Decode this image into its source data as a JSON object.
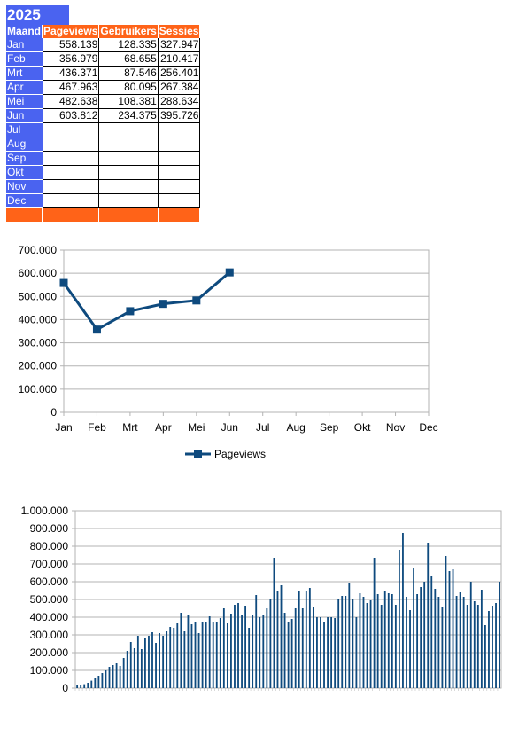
{
  "sheet": {
    "year": "2025",
    "headers": [
      "Maand",
      "Pageviews",
      "Gebruikers",
      "Sessies"
    ],
    "rows": [
      {
        "month": "Jan",
        "pageviews": "558.139",
        "users": "128.335",
        "sessions": "327.947"
      },
      {
        "month": "Feb",
        "pageviews": "356.979",
        "users": "68.655",
        "sessions": "210.417"
      },
      {
        "month": "Mrt",
        "pageviews": "436.371",
        "users": "87.546",
        "sessions": "256.401"
      },
      {
        "month": "Apr",
        "pageviews": "467.963",
        "users": "80.095",
        "sessions": "267.384"
      },
      {
        "month": "Mei",
        "pageviews": "482.638",
        "users": "108.381",
        "sessions": "288.634"
      },
      {
        "month": "Jun",
        "pageviews": "603.812",
        "users": "234.375",
        "sessions": "395.726"
      },
      {
        "month": "Jul",
        "pageviews": "",
        "users": "",
        "sessions": ""
      },
      {
        "month": "Aug",
        "pageviews": "",
        "users": "",
        "sessions": ""
      },
      {
        "month": "Sep",
        "pageviews": "",
        "users": "",
        "sessions": ""
      },
      {
        "month": "Okt",
        "pageviews": "",
        "users": "",
        "sessions": ""
      },
      {
        "month": "Nov",
        "pageviews": "",
        "users": "",
        "sessions": ""
      },
      {
        "month": "Dec",
        "pageviews": "",
        "users": "",
        "sessions": ""
      }
    ],
    "colors": {
      "month_col": "#4a63f0",
      "header": "#ff6318"
    }
  },
  "chart_data": [
    {
      "type": "line",
      "categories": [
        "Jan",
        "Feb",
        "Mrt",
        "Apr",
        "Mei",
        "Jun",
        "Jul",
        "Aug",
        "Sep",
        "Okt",
        "Nov",
        "Dec"
      ],
      "series": [
        {
          "name": "Pageviews",
          "values": [
            558139,
            356979,
            436371,
            467963,
            482638,
            603812,
            null,
            null,
            null,
            null,
            null,
            null
          ],
          "color": "#0e4a7e"
        }
      ],
      "ylim": [
        0,
        700000
      ],
      "yticks": [
        "0",
        "100.000",
        "200.000",
        "300.000",
        "400.000",
        "500.000",
        "600.000",
        "700.000"
      ],
      "grid": true,
      "legend": "bottom",
      "marker": "square"
    },
    {
      "type": "bar",
      "series": [
        {
          "values": [
            15000,
            18000,
            22000,
            30000,
            42000,
            55000,
            70000,
            85000,
            100000,
            120000,
            130000,
            140000,
            125000,
            170000,
            210000,
            260000,
            225000,
            295000,
            220000,
            280000,
            295000,
            315000,
            255000,
            310000,
            295000,
            320000,
            345000,
            340000,
            365000,
            425000,
            320000,
            415000,
            360000,
            375000,
            310000,
            370000,
            375000,
            405000,
            375000,
            375000,
            395000,
            450000,
            365000,
            420000,
            470000,
            480000,
            410000,
            465000,
            340000,
            410000,
            525000,
            400000,
            410000,
            450000,
            500000,
            735000,
            550000,
            580000,
            425000,
            375000,
            390000,
            450000,
            545000,
            450000,
            545000,
            565000,
            460000,
            400000,
            400000,
            370000,
            400000,
            400000,
            395000,
            505000,
            520000,
            520000,
            590000,
            500000,
            400000,
            535000,
            515000,
            480000,
            495000,
            735000,
            530000,
            470000,
            545000,
            535000,
            530000,
            470000,
            780000,
            875000,
            515000,
            440000,
            675000,
            530000,
            570000,
            600000,
            820000,
            630000,
            560000,
            515000,
            455000,
            745000,
            660000,
            670000,
            520000,
            540000,
            515000,
            470000,
            600000,
            490000,
            470000,
            555000,
            355000,
            435000,
            465000,
            480000,
            600000
          ],
          "color": "#0e4a7e"
        }
      ],
      "ylim": [
        0,
        1000000
      ],
      "yticks": [
        "0",
        "100.000",
        "200.000",
        "300.000",
        "400.000",
        "500.000",
        "600.000",
        "700.000",
        "800.000",
        "900.000",
        "1.000.000"
      ],
      "grid": true
    }
  ]
}
